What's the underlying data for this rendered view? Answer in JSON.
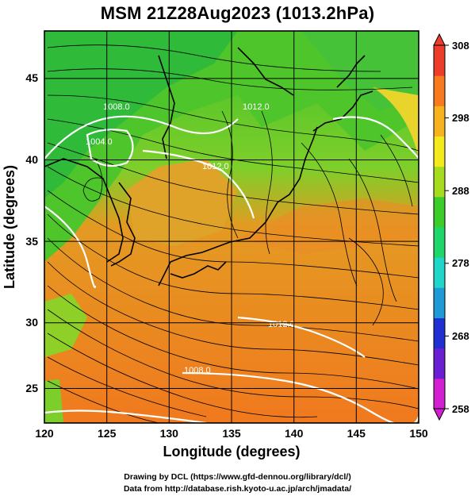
{
  "title": "MSM 21Z28Aug2023 (1013.2hPa)",
  "map": {
    "lon_range": [
      120,
      150
    ],
    "lat_range": [
      22.6,
      48
    ],
    "lon_ticks": [
      "120",
      "125",
      "130",
      "135",
      "140",
      "145",
      "150"
    ],
    "lat_ticks": [
      "25",
      "30",
      "35",
      "40",
      "45"
    ],
    "xlabel": "Longitude (degrees)",
    "ylabel": "Latitude  (degrees)",
    "grid": true,
    "fields": [
      "temperature (shaded)",
      "streamlines",
      "pressure contours"
    ],
    "contour_labels": [
      "1008.0",
      "1012.0",
      "1012.0",
      "1004.0",
      "1008.0",
      "1012.0"
    ]
  },
  "colorbar": {
    "ticks": [
      "308",
      "298",
      "288",
      "278",
      "268",
      "258"
    ],
    "min": 258,
    "max": 308,
    "colors": [
      "#d21fd2",
      "#6a1fd2",
      "#1f2fd2",
      "#1f9ad6",
      "#1fd6c8",
      "#1fd66a",
      "#3ccd2a",
      "#a6dc1e",
      "#f4e81e",
      "#f7b31e",
      "#f77a1e",
      "#ee3c2a"
    ]
  },
  "credits": {
    "line1": "Drawing by DCL (https://www.gfd-dennou.org/library/dcl/)",
    "line2": "Data from http://database.rish.kyoto-u.ac.jp/arch/jmadata/"
  }
}
